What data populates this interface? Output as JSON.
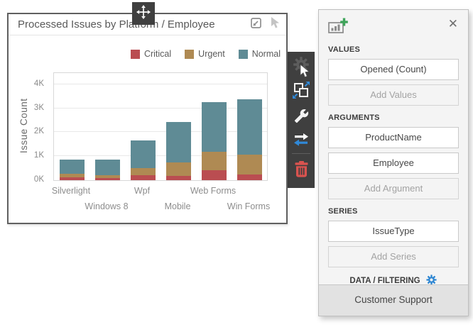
{
  "chart_data": {
    "type": "bar",
    "stacked": true,
    "title": "Processed Issues by Platform / Employee",
    "categories": [
      "Silverlight",
      "Windows 8",
      "Wpf",
      "Mobile",
      "Web Forms",
      "Win Forms"
    ],
    "series": [
      {
        "name": "Critical",
        "color": "#ba4d51",
        "values": [
          120,
          100,
          220,
          190,
          420,
          250
        ]
      },
      {
        "name": "Urgent",
        "color": "#af8a53",
        "values": [
          150,
          120,
          290,
          540,
          770,
          810
        ]
      },
      {
        "name": "Normal",
        "color": "#5f8b95",
        "values": [
          600,
          650,
          1160,
          1710,
          2080,
          2320
        ]
      }
    ],
    "xlabel": "",
    "ylabel": "Issue Count",
    "yticks": [
      "0K",
      "1K",
      "2K",
      "3K",
      "4K"
    ],
    "ylim": [
      0,
      4000
    ],
    "grid": true,
    "legend_position": "top-right"
  },
  "widget": {
    "icons": [
      "move-icon",
      "export-icon",
      "pointer-icon"
    ]
  },
  "toolbar": {
    "icons": [
      "settings-gear-icon",
      "convert-widget-icon",
      "wrench-icon",
      "swap-arrows-icon",
      "trash-icon"
    ]
  },
  "panel": {
    "header": {
      "icon": "chart-add-icon",
      "close_glyph": "✕"
    },
    "sections": [
      {
        "label": "VALUES",
        "items": [
          {
            "text": "Opened (Count)",
            "filled": true
          },
          {
            "text": "Add Values",
            "filled": false
          }
        ]
      },
      {
        "label": "ARGUMENTS",
        "items": [
          {
            "text": "ProductName",
            "filled": true
          },
          {
            "text": "Employee",
            "filled": true
          },
          {
            "text": "Add Argument",
            "filled": false
          }
        ]
      },
      {
        "label": "SERIES",
        "items": [
          {
            "text": "IssueType",
            "filled": true
          },
          {
            "text": "Add Series",
            "filled": false
          }
        ]
      }
    ],
    "data_filtering_label": "DATA / FILTERING",
    "footer_label": "Customer Support"
  },
  "colors": {
    "toolbar_bg": "#3f3f3f",
    "trash_red": "#d9534f",
    "accent_blue": "#2e86d2",
    "panel_bg": "#f4f4f4",
    "footer_bg": "#e2e2e2",
    "card_border": "#606060"
  }
}
